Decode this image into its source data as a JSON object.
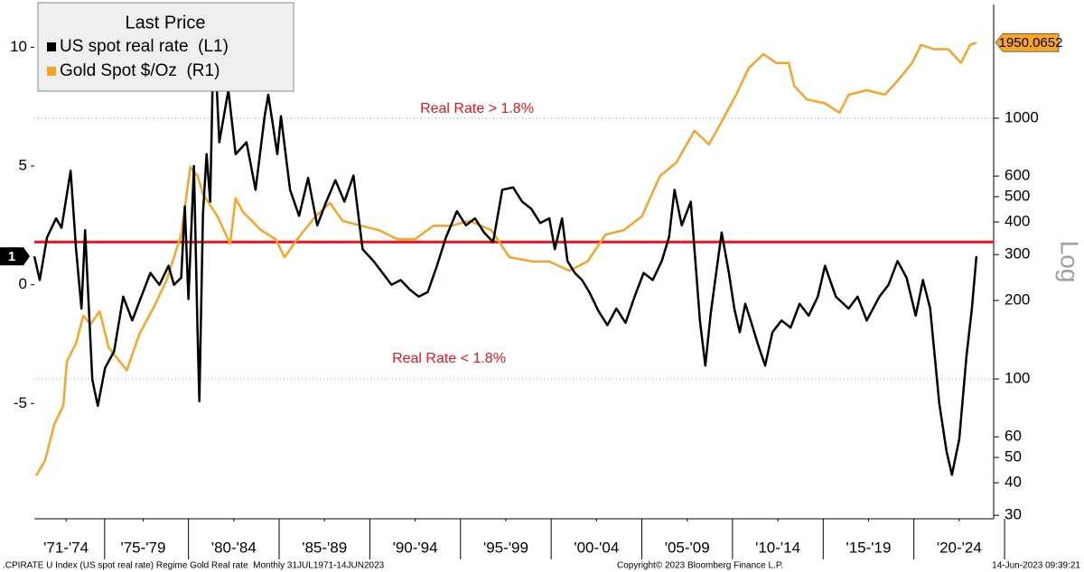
{
  "chart_data": {
    "type": "line",
    "legend_title": "Last Price",
    "legend": "top-left",
    "series": [
      {
        "name": "US spot real rate  (L1)",
        "color": "#000000",
        "axis": "y",
        "x": [
          1971.5,
          1971.8,
          1972.2,
          1972.7,
          1973.0,
          1973.5,
          1973.8,
          1974.1,
          1974.3,
          1974.7,
          1975.0,
          1975.4,
          1975.9,
          1976.4,
          1976.9,
          1977.4,
          1977.9,
          1978.4,
          1978.9,
          1979.2,
          1979.6,
          1979.8,
          1980.0,
          1980.3,
          1980.5,
          1980.6,
          1980.8,
          1981.0,
          1981.2,
          1981.4,
          1981.7,
          1982.2,
          1982.6,
          1983.2,
          1983.7,
          1984.2,
          1984.4,
          1984.9,
          1985.1,
          1985.6,
          1986.1,
          1986.6,
          1987.1,
          1987.6,
          1988.1,
          1988.6,
          1989.1,
          1989.6,
          1990.2,
          1990.7,
          1991.2,
          1991.7,
          1992.2,
          1992.7,
          1993.2,
          1993.7,
          1994.2,
          1994.8,
          1995.3,
          1995.8,
          1996.3,
          1996.8,
          1997.3,
          1997.9,
          1998.4,
          1998.9,
          1999.4,
          1999.9,
          2000.2,
          2000.6,
          2000.9,
          2001.3,
          2001.7,
          2002.1,
          2002.6,
          2003.1,
          2003.6,
          2004.1,
          2004.6,
          2005.1,
          2005.6,
          2006.1,
          2006.5,
          2006.8,
          2007.2,
          2007.7,
          2008.0,
          2008.2,
          2008.5,
          2008.8,
          2009.1,
          2009.4,
          2009.8,
          2010.1,
          2010.4,
          2010.7,
          2011.0,
          2011.4,
          2011.8,
          2012.2,
          2012.7,
          2013.2,
          2013.7,
          2014.2,
          2014.7,
          2015.1,
          2015.7,
          2016.4,
          2016.9,
          2017.4,
          2018.1,
          2018.6,
          2019.1,
          2019.6,
          2020.1,
          2020.5,
          2020.9,
          2021.4,
          2021.8,
          2022.1,
          2022.5,
          2022.9,
          2023.2,
          2023.45
        ],
        "values": [
          1.2,
          0.2,
          2.0,
          2.8,
          2.4,
          4.8,
          1.5,
          -1.0,
          2.3,
          -4.0,
          -5.1,
          -3.5,
          -2.8,
          -0.5,
          -1.5,
          -0.5,
          0.5,
          0.0,
          0.8,
          0.0,
          0.3,
          3.3,
          -0.6,
          5.0,
          -2.0,
          -4.9,
          3.0,
          5.5,
          3.5,
          10.9,
          6.0,
          8.2,
          5.5,
          6.0,
          4.0,
          7.1,
          8.0,
          5.5,
          7.1,
          4.0,
          2.9,
          4.5,
          2.5,
          3.5,
          4.4,
          3.5,
          4.6,
          1.5,
          1.0,
          0.5,
          0.0,
          0.2,
          -0.2,
          -0.5,
          -0.3,
          0.8,
          2.0,
          3.1,
          2.5,
          2.8,
          2.2,
          1.8,
          4.0,
          4.1,
          3.5,
          3.2,
          2.6,
          2.8,
          1.5,
          2.8,
          1.0,
          0.5,
          0.2,
          -0.3,
          -1.1,
          -1.7,
          -1.0,
          -1.6,
          -0.5,
          0.5,
          0.2,
          1.0,
          2.0,
          4.0,
          2.5,
          3.5,
          0.5,
          -1.5,
          -3.4,
          -1.2,
          0.5,
          2.2,
          0.5,
          -1.0,
          -2.0,
          -0.8,
          -1.5,
          -2.5,
          -3.4,
          -2.0,
          -1.5,
          -1.8,
          -0.8,
          -1.3,
          -0.5,
          0.8,
          -0.5,
          -1.0,
          -0.5,
          -1.5,
          -0.5,
          0.0,
          1.0,
          0.3,
          -1.3,
          0.2,
          -1.0,
          -5.0,
          -7.0,
          -8.0,
          -6.5,
          -3.0,
          -1.0,
          1.2
        ],
        "value_labels": [
          null,
          null,
          null,
          null,
          null,
          null,
          null,
          null,
          null,
          null,
          null,
          null,
          null,
          null,
          null,
          null,
          null,
          null,
          null,
          null,
          null,
          null,
          null,
          null,
          null,
          null,
          null,
          null,
          null,
          null,
          null,
          null,
          null,
          null,
          null,
          null,
          null,
          null,
          null,
          null,
          null,
          null,
          null,
          null,
          null,
          null,
          null,
          null,
          null,
          null,
          null,
          null,
          null,
          null,
          null,
          null,
          null,
          null,
          null,
          null,
          null,
          null,
          null,
          null,
          null,
          null,
          null,
          null,
          null,
          null,
          null,
          null,
          null,
          null,
          null,
          null,
          null,
          null,
          null,
          null,
          null,
          null,
          null,
          null,
          null,
          null,
          null,
          null,
          null,
          null,
          null,
          null,
          null,
          null,
          null,
          null,
          null,
          null,
          null,
          null,
          null,
          null,
          null,
          null,
          null,
          null,
          null,
          null,
          null,
          null,
          null,
          null,
          null,
          null,
          null,
          null,
          null,
          null,
          null,
          null,
          null,
          null,
          null,
          "1"
        ]
      },
      {
        "name": "Gold Spot $/Oz  (R1)",
        "color": "#f7a428",
        "axis": "y2",
        "x": [
          1971.6,
          1972.1,
          1972.6,
          1973.1,
          1973.3,
          1973.8,
          1974.2,
          1974.6,
          1975.1,
          1975.6,
          1976.6,
          1977.3,
          1978.1,
          1978.8,
          1979.6,
          1980.1,
          1980.5,
          1980.8,
          1981.6,
          1982.3,
          1982.6,
          1983.0,
          1984.0,
          1984.8,
          1985.3,
          1986.0,
          1987.0,
          1987.8,
          1988.5,
          1989.5,
          1990.5,
          1991.5,
          1992.5,
          1993.5,
          1994.5,
          1995.5,
          1996.7,
          1997.7,
          1999.0,
          1999.9,
          2001.0,
          2002.0,
          2003.0,
          2004.0,
          2005.0,
          2006.0,
          2006.9,
          2007.9,
          2008.7,
          2009.4,
          2010.2,
          2010.9,
          2011.7,
          2012.4,
          2013.1,
          2013.4,
          2014.1,
          2015.1,
          2015.9,
          2016.4,
          2017.4,
          2018.4,
          2019.1,
          2019.9,
          2020.4,
          2021.1,
          2021.9,
          2022.6,
          2023.1,
          2023.45
        ],
        "values": [
          42.6,
          48.8,
          67,
          79,
          117,
          137,
          175,
          162,
          182,
          132,
          108,
          149,
          189,
          240,
          358,
          650,
          600,
          512,
          420,
          330,
          493,
          437,
          372,
          344,
          293,
          344,
          420,
          473,
          404,
          387,
          372,
          344,
          344,
          387,
          387,
          404,
          372,
          293,
          282,
          282,
          260,
          282,
          358,
          372,
          420,
          600,
          676,
          895,
          794,
          970,
          1230,
          1560,
          1760,
          1630,
          1630,
          1330,
          1180,
          1140,
          1050,
          1230,
          1280,
          1230,
          1390,
          1630,
          1910,
          1840,
          1840,
          1630,
          1910,
          1950.0652
        ]
      }
    ],
    "xlim": [
      1971.5,
      2024.4
    ],
    "xticks": [
      {
        "value": 1973.25,
        "label": "'71-'74"
      },
      {
        "value": 1977.5,
        "label": "'75-'79"
      },
      {
        "value": 1982.5,
        "label": "'80-'84"
      },
      {
        "value": 1987.5,
        "label": "'85-'89"
      },
      {
        "value": 1992.5,
        "label": "'90-'94"
      },
      {
        "value": 1997.5,
        "label": "'95-'99"
      },
      {
        "value": 2002.5,
        "label": "'00-'04"
      },
      {
        "value": 2007.5,
        "label": "'05-'09"
      },
      {
        "value": 2012.5,
        "label": "'10-'14"
      },
      {
        "value": 2017.5,
        "label": "'15-'19"
      },
      {
        "value": 2022.5,
        "label": "'20-'24"
      }
    ],
    "ylim": [
      -9.85,
      11.8
    ],
    "yticks": [
      -5,
      0,
      5,
      10
    ],
    "y2lim": [
      29.1,
      2729
    ],
    "y2ticks": [
      30,
      40,
      50,
      60,
      100,
      200,
      300,
      400,
      500,
      600,
      1000
    ],
    "y2_log": true,
    "y2_label": "Log",
    "y2grid": true,
    "threshold": {
      "value": 1.8,
      "color": "#e8141e"
    },
    "annotations": [
      {
        "text": "Real Rate > 1.8%",
        "color": "#e8141e"
      },
      {
        "text": "Real Rate < 1.8%",
        "color": "#e8141e"
      }
    ],
    "footer": {
      "left": ".CPIRATE U Index (US spot real rate) Regime Gold Real rate  Monthly 31JUL1971-14JUN2023",
      "center": "Copyright© 2023 Bloomberg Finance L.P.",
      "right": "14-Jun-2023 09:39:21"
    }
  }
}
